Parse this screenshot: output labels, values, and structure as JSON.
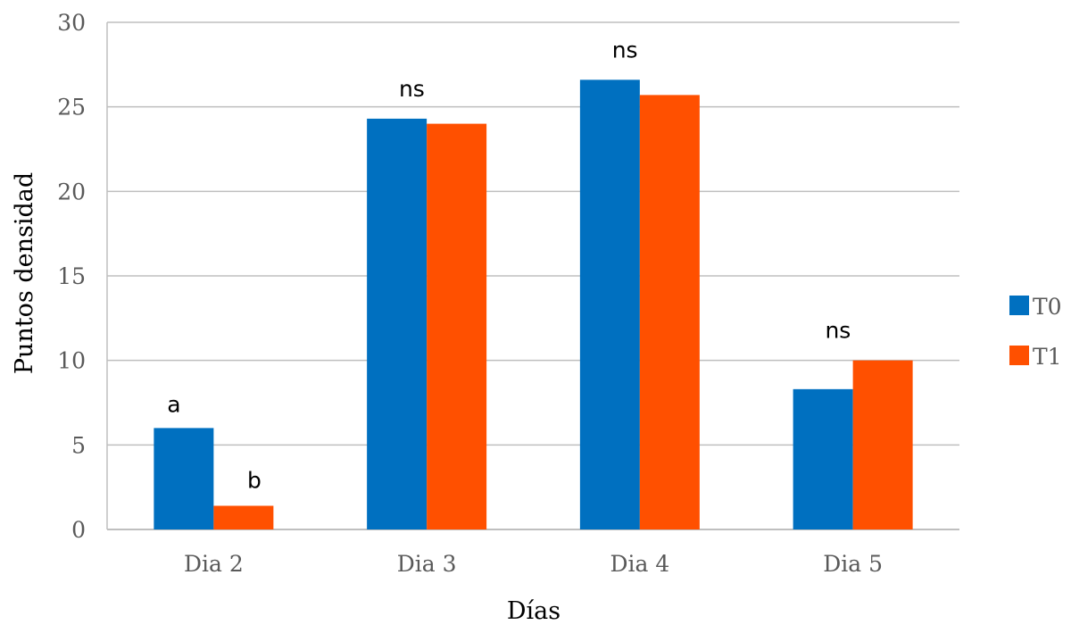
{
  "chart_data": {
    "type": "bar",
    "xlabel": "Días",
    "ylabel": "Puntos densidad",
    "categories": [
      "Dia 2",
      "Dia 3",
      "Dia 4",
      "Dia 5"
    ],
    "series": [
      {
        "name": "T0",
        "color": "#0070C0",
        "values": [
          6.0,
          24.3,
          26.6,
          8.3
        ]
      },
      {
        "name": "T1",
        "color": "#FF5000",
        "values": [
          1.4,
          24.0,
          25.7,
          10.0
        ]
      }
    ],
    "ylim": [
      0,
      30
    ],
    "yticks": [
      "0",
      "5",
      "10",
      "15",
      "20",
      "25",
      "30"
    ],
    "grid": true,
    "legend_position": "right",
    "annotations": [
      {
        "category": 0,
        "series": 0,
        "text": "a"
      },
      {
        "category": 0,
        "series": 1,
        "text": "b"
      },
      {
        "category": 1,
        "series": null,
        "text": "ns"
      },
      {
        "category": 2,
        "series": null,
        "text": "ns"
      },
      {
        "category": 3,
        "series": null,
        "text": "ns"
      }
    ],
    "colors": {
      "grid": "#BFBFBF",
      "axis": "#BFBFBF"
    }
  }
}
